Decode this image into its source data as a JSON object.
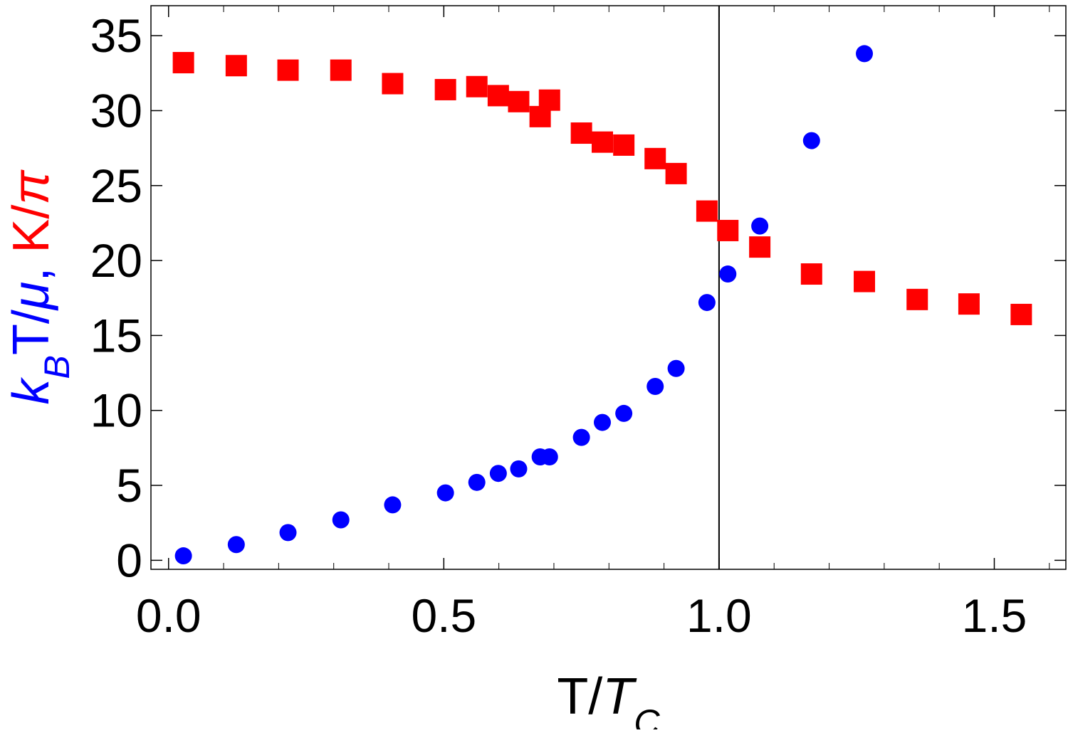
{
  "chart_data": {
    "type": "scatter",
    "xlabel_parts": [
      {
        "text": "T/",
        "color": "#000000",
        "style": "normal",
        "sub": false
      },
      {
        "text": "T",
        "color": "#000000",
        "style": "italic",
        "sub": false
      },
      {
        "text": "C",
        "color": "#000000",
        "style": "italic",
        "sub": true
      }
    ],
    "ylabel_parts": [
      {
        "text": "k",
        "color": "#0000ff",
        "style": "italic",
        "sub": false
      },
      {
        "text": "B",
        "color": "#0000ff",
        "style": "italic",
        "sub": true
      },
      {
        "text": "T/",
        "color": "#0000ff",
        "style": "normal",
        "sub": false
      },
      {
        "text": "μ",
        "color": "#0000ff",
        "style": "italic",
        "sub": false
      },
      {
        "text": ", ",
        "color": "#0000ff",
        "style": "normal",
        "sub": false
      },
      {
        "text": "K/",
        "color": "#ff0000",
        "style": "normal",
        "sub": false
      },
      {
        "text": "π",
        "color": "#ff0000",
        "style": "italic",
        "sub": false
      }
    ],
    "xlim": [
      -0.032,
      1.63
    ],
    "ylim": [
      -0.6,
      37
    ],
    "xticks": [
      {
        "value": 0,
        "label": "0.0"
      },
      {
        "value": 0.5,
        "label": "0.5"
      },
      {
        "value": 1,
        "label": "1.0"
      },
      {
        "value": 1.5,
        "label": "1.5"
      }
    ],
    "xminorticks": [
      0.1,
      0.2,
      0.3,
      0.4,
      0.6,
      0.7,
      0.8,
      0.9,
      1.1,
      1.2,
      1.3,
      1.4,
      1.6
    ],
    "yticks": [
      0,
      5,
      10,
      15,
      20,
      25,
      30,
      35
    ],
    "vlines": [
      1
    ],
    "series": [
      {
        "marker": "circle",
        "color": "#0000ff",
        "x": [
          0.027,
          0.123,
          0.217,
          0.313,
          0.407,
          0.503,
          0.56,
          0.599,
          0.636,
          0.675,
          0.692,
          0.75,
          0.788,
          0.827,
          0.884,
          0.922,
          0.978,
          1.016,
          1.074,
          1.168,
          1.264
        ],
        "values": [
          0.3,
          1.05,
          1.85,
          2.7,
          3.7,
          4.5,
          5.2,
          5.8,
          6.1,
          6.9,
          6.9,
          8.2,
          9.2,
          9.8,
          11.6,
          12.8,
          17.2,
          19.1,
          22.3,
          28.0,
          33.8
        ]
      },
      {
        "marker": "square",
        "color": "#ff0000",
        "x": [
          0.027,
          0.123,
          0.217,
          0.313,
          0.407,
          0.503,
          0.56,
          0.599,
          0.636,
          0.675,
          0.692,
          0.75,
          0.788,
          0.827,
          0.884,
          0.922,
          0.978,
          1.016,
          1.074,
          1.168,
          1.264,
          1.36,
          1.454,
          1.549
        ],
        "values": [
          33.2,
          33.0,
          32.7,
          32.7,
          31.8,
          31.4,
          31.6,
          31.0,
          30.6,
          29.6,
          30.7,
          28.5,
          27.9,
          27.7,
          26.8,
          25.8,
          23.3,
          22.0,
          20.9,
          19.1,
          18.6,
          17.4,
          17.1,
          16.4
        ]
      }
    ]
  }
}
